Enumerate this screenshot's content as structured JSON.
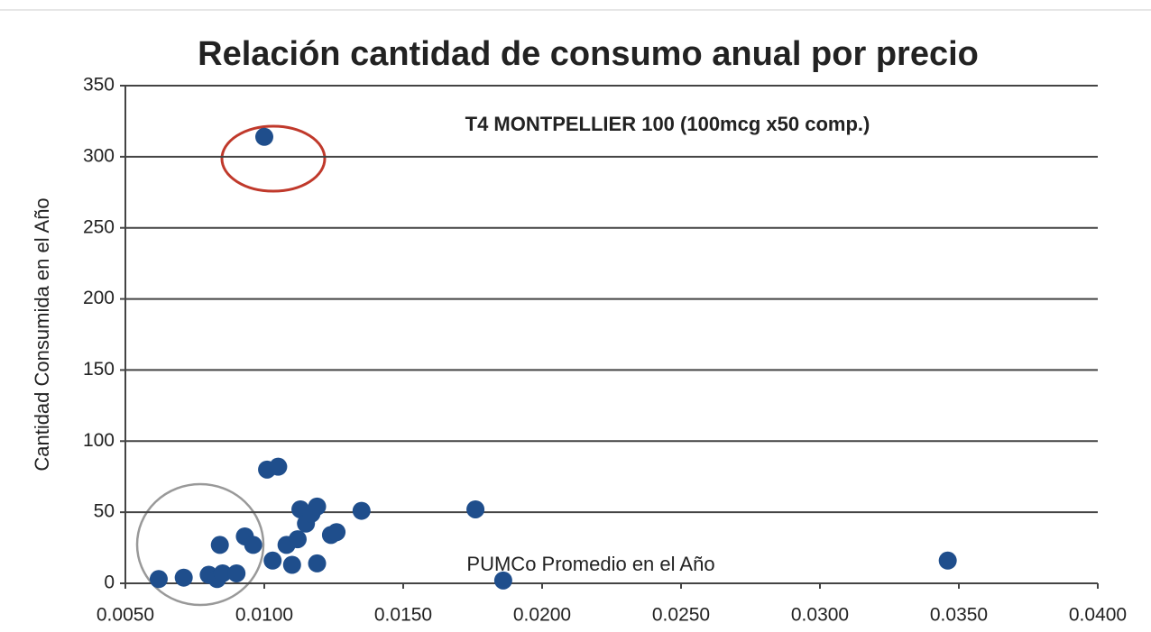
{
  "chart_data": {
    "type": "scatter",
    "title": "Relación cantidad de consumo anual por precio",
    "xlabel": "PUMCo Promedio en el Año",
    "ylabel": "Cantidad Consumida en el Año",
    "annotation": "T4 MONTPELLIER 100 (100mcg x50 comp.)",
    "color": "#1f4e8c",
    "grid": true,
    "xlim": [
      0.005,
      0.04
    ],
    "ylim": [
      0,
      350
    ],
    "xticks": [
      {
        "value": 0.005,
        "label": "0.0050"
      },
      {
        "value": 0.01,
        "label": "0.0100"
      },
      {
        "value": 0.015,
        "label": "0.0150"
      },
      {
        "value": 0.02,
        "label": "0.0200"
      },
      {
        "value": 0.025,
        "label": "0.0250"
      },
      {
        "value": 0.03,
        "label": "0.0300"
      },
      {
        "value": 0.035,
        "label": "0.0350"
      },
      {
        "value": 0.04,
        "label": "0.0400"
      }
    ],
    "yticks": [
      0,
      50,
      100,
      150,
      200,
      250,
      300,
      350
    ],
    "x": [
      0.01,
      0.0062,
      0.0071,
      0.008,
      0.0083,
      0.0085,
      0.009,
      0.0084,
      0.0093,
      0.0096,
      0.0101,
      0.0105,
      0.0103,
      0.0108,
      0.011,
      0.0112,
      0.0113,
      0.0115,
      0.0117,
      0.0119,
      0.0119,
      0.0124,
      0.0126,
      0.0135,
      0.0176,
      0.0186,
      0.0346
    ],
    "values": [
      314,
      3,
      4,
      6,
      3,
      7,
      7,
      27,
      33,
      27,
      80,
      82,
      16,
      27,
      13,
      31,
      52,
      42,
      49,
      54,
      14,
      34,
      36,
      51,
      52,
      2,
      16
    ]
  }
}
